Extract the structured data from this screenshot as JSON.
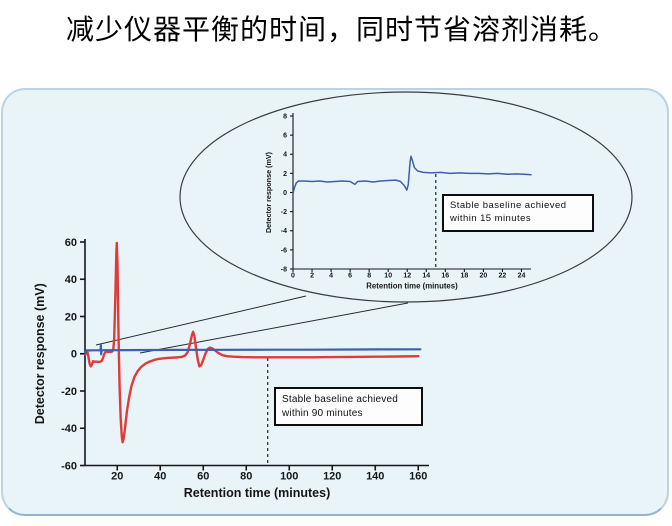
{
  "title": "减少仪器平衡的时间，同时节省溶剂消耗。",
  "colors": {
    "panel_background": "#e9f4f8",
    "panel_border": "#b9d3e6",
    "red_trace": "#df3b3b",
    "blue_trace": "#3f5fa8",
    "axis": "#161616",
    "oval_stroke": "#3c3c3c"
  },
  "chart_data": [
    {
      "id": "main",
      "type": "line",
      "title": "",
      "xlabel": "Retention time (minutes)",
      "ylabel": "Detector response (mV)",
      "xlim": [
        5,
        165
      ],
      "ylim": [
        -60,
        60
      ],
      "xticks": [
        20,
        40,
        60,
        80,
        100,
        120,
        140,
        160
      ],
      "yticks": [
        -60,
        -40,
        -20,
        0,
        20,
        40,
        60
      ],
      "grid": false,
      "legend": "none",
      "annotation": {
        "line1": "Stable baseline achieved",
        "line2": "within 90 minutes",
        "marker_x": 90
      },
      "series": [
        {
          "name": "red-trace",
          "color": "#df3b3b",
          "points": [
            [
              5.2,
              -0.5
            ],
            [
              5.5,
              0.8
            ],
            [
              5.9,
              1.5
            ],
            [
              6.3,
              0.3
            ],
            [
              6.7,
              -2.5
            ],
            [
              7.2,
              -5.5
            ],
            [
              7.7,
              -6.8
            ],
            [
              8.2,
              -5.8
            ],
            [
              8.7,
              -4.0
            ],
            [
              9.3,
              -4.4
            ],
            [
              10,
              -4.2
            ],
            [
              11,
              -4.4
            ],
            [
              12,
              -4.3
            ],
            [
              12.8,
              -3.8
            ],
            [
              13.4,
              -2.2
            ],
            [
              14,
              -0.2
            ],
            [
              14.5,
              0.9
            ],
            [
              15.5,
              1.1
            ],
            [
              16.5,
              1.0
            ],
            [
              17.5,
              1.1
            ],
            [
              18.1,
              1.8
            ],
            [
              18.6,
              8
            ],
            [
              19.1,
              30
            ],
            [
              19.6,
              55
            ],
            [
              19.8,
              59.5
            ],
            [
              20.1,
              48
            ],
            [
              20.4,
              25
            ],
            [
              20.7,
              2
            ],
            [
              21.1,
              -18
            ],
            [
              21.6,
              -35
            ],
            [
              22.1,
              -44.5
            ],
            [
              22.5,
              -47.5
            ],
            [
              23,
              -45.5
            ],
            [
              23.7,
              -39
            ],
            [
              24.5,
              -31
            ],
            [
              25.5,
              -23.5
            ],
            [
              26.6,
              -17.5
            ],
            [
              28,
              -12.5
            ],
            [
              29.5,
              -9.3
            ],
            [
              31,
              -7.2
            ],
            [
              33,
              -5.4
            ],
            [
              35,
              -4.2
            ],
            [
              37,
              -3.4
            ],
            [
              39,
              -2.8
            ],
            [
              41,
              -2.5
            ],
            [
              44,
              -2.2
            ],
            [
              47,
              -2.0
            ],
            [
              50,
              -1.7
            ],
            [
              51.5,
              -1.0
            ],
            [
              52.7,
              0.8
            ],
            [
              53.8,
              5
            ],
            [
              54.7,
              10
            ],
            [
              55.3,
              11.8
            ],
            [
              55.9,
              9.5
            ],
            [
              56.6,
              3.5
            ],
            [
              57.4,
              -3
            ],
            [
              58.2,
              -6.8
            ],
            [
              59,
              -6.2
            ],
            [
              60,
              -3.2
            ],
            [
              61,
              0
            ],
            [
              62,
              2.5
            ],
            [
              63,
              3.3
            ],
            [
              64,
              3.0
            ],
            [
              65.5,
              1.8
            ],
            [
              67,
              0.4
            ],
            [
              69,
              -0.8
            ],
            [
              71,
              -1.3
            ],
            [
              74,
              -1.6
            ],
            [
              78,
              -1.8
            ],
            [
              84,
              -1.9
            ],
            [
              90,
              -1.9
            ],
            [
              100,
              -1.9
            ],
            [
              110,
              -1.9
            ],
            [
              120,
              -1.8
            ],
            [
              130,
              -1.7
            ],
            [
              140,
              -1.6
            ],
            [
              150,
              -1.5
            ],
            [
              160,
              -1.3
            ]
          ]
        },
        {
          "name": "blue-trace",
          "color": "#3f5fa8",
          "points": [
            [
              5.2,
              0.2
            ],
            [
              5.4,
              1.5
            ],
            [
              5.8,
              1.8
            ],
            [
              7,
              1.8
            ],
            [
              9,
              1.85
            ],
            [
              11,
              1.85
            ],
            [
              12.2,
              1.8
            ],
            [
              12.4,
              4.8
            ],
            [
              12.55,
              -0.3
            ],
            [
              12.7,
              1.85
            ],
            [
              14,
              1.9
            ],
            [
              18,
              1.9
            ],
            [
              25,
              1.95
            ],
            [
              35,
              2.0
            ],
            [
              50,
              2.05
            ],
            [
              70,
              2.1
            ],
            [
              90,
              2.15
            ],
            [
              110,
              2.2
            ],
            [
              130,
              2.3
            ],
            [
              145,
              2.35
            ],
            [
              161,
              2.4
            ]
          ]
        }
      ]
    },
    {
      "id": "inset",
      "type": "line",
      "title": "",
      "xlabel": "Retention time (minutes)",
      "ylabel": "Detector response (mV)",
      "xlim": [
        0,
        25
      ],
      "ylim": [
        -8,
        8
      ],
      "xticks": [
        0,
        2,
        4,
        6,
        8,
        10,
        12,
        14,
        16,
        18,
        20,
        22,
        24
      ],
      "yticks": [
        -8,
        -6,
        -4,
        -2,
        0,
        2,
        4,
        6,
        8
      ],
      "grid": false,
      "legend": "none",
      "annotation": {
        "line1": "Stable baseline achieved",
        "line2": "within 15 minutes",
        "marker_x": 15
      },
      "series": [
        {
          "name": "inset-blue-trace",
          "color": "#3f5fa8",
          "points": [
            [
              0,
              -0.1
            ],
            [
              0.15,
              0.5
            ],
            [
              0.35,
              1.0
            ],
            [
              0.6,
              1.2
            ],
            [
              1.2,
              1.2
            ],
            [
              2,
              1.15
            ],
            [
              2.8,
              1.2
            ],
            [
              3.6,
              1.1
            ],
            [
              4.4,
              1.15
            ],
            [
              5.2,
              1.2
            ],
            [
              6,
              1.15
            ],
            [
              6.5,
              0.85
            ],
            [
              6.8,
              1.15
            ],
            [
              7.6,
              1.2
            ],
            [
              8.4,
              1.1
            ],
            [
              9.2,
              1.2
            ],
            [
              10,
              1.25
            ],
            [
              10.8,
              1.3
            ],
            [
              11.3,
              1.15
            ],
            [
              11.7,
              0.7
            ],
            [
              11.95,
              0.25
            ],
            [
              12.1,
              0.8
            ],
            [
              12.3,
              3.2
            ],
            [
              12.4,
              3.8
            ],
            [
              12.55,
              3.3
            ],
            [
              12.75,
              2.6
            ],
            [
              13.1,
              2.25
            ],
            [
              13.7,
              2.1
            ],
            [
              14.5,
              2.05
            ],
            [
              15.5,
              2.1
            ],
            [
              16.5,
              2.0
            ],
            [
              17.5,
              2.05
            ],
            [
              18.5,
              2.0
            ],
            [
              19.5,
              2.0
            ],
            [
              20.5,
              1.95
            ],
            [
              21.5,
              2.0
            ],
            [
              22.5,
              1.9
            ],
            [
              23.5,
              1.95
            ],
            [
              24.3,
              1.9
            ],
            [
              25,
              1.85
            ]
          ]
        }
      ]
    }
  ]
}
